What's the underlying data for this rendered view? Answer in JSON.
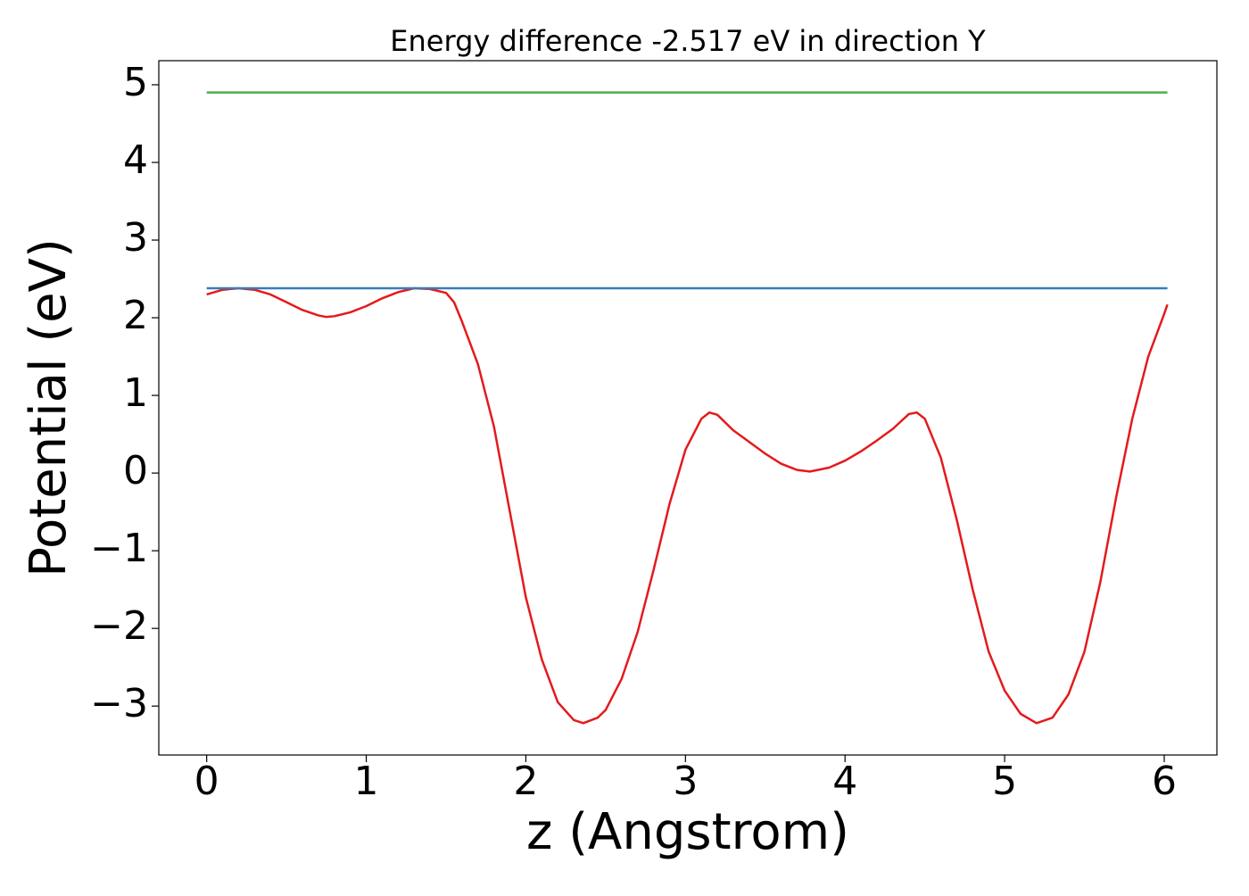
{
  "chart_data": {
    "type": "line",
    "title": "Energy difference -2.517 eV in direction Y",
    "xlabel": "z (Angstrom)",
    "ylabel": "Potential (eV)",
    "xlim": [
      -0.3,
      6.33
    ],
    "ylim": [
      -3.63,
      5.31
    ],
    "xticks": [
      0,
      1,
      2,
      3,
      4,
      5,
      6
    ],
    "yticks": [
      {
        "value": -3,
        "label": "−3"
      },
      {
        "value": -2,
        "label": "−2"
      },
      {
        "value": -1,
        "label": "−1"
      },
      0,
      1,
      2,
      3,
      4,
      5
    ],
    "grid": false,
    "series": [
      {
        "color": "#e41a1c",
        "x": [
          0,
          0.1,
          0.2,
          0.3,
          0.4,
          0.5,
          0.6,
          0.7,
          0.75,
          0.8,
          0.9,
          1.0,
          1.1,
          1.2,
          1.3,
          1.4,
          1.5,
          1.55,
          1.6,
          1.7,
          1.8,
          1.9,
          2.0,
          2.1,
          2.2,
          2.3,
          2.36,
          2.45,
          2.5,
          2.6,
          2.7,
          2.8,
          2.9,
          3.0,
          3.1,
          3.15,
          3.2,
          3.3,
          3.4,
          3.5,
          3.6,
          3.7,
          3.78,
          3.9,
          4.0,
          4.1,
          4.2,
          4.3,
          4.4,
          4.45,
          4.5,
          4.6,
          4.7,
          4.8,
          4.9,
          5.0,
          5.1,
          5.2,
          5.3,
          5.4,
          5.5,
          5.6,
          5.7,
          5.8,
          5.9,
          6.0,
          6.02
        ],
        "values": [
          2.3,
          2.36,
          2.38,
          2.36,
          2.3,
          2.2,
          2.1,
          2.03,
          2.01,
          2.02,
          2.07,
          2.15,
          2.25,
          2.33,
          2.38,
          2.37,
          2.32,
          2.2,
          1.95,
          1.4,
          0.6,
          -0.5,
          -1.6,
          -2.4,
          -2.95,
          -3.18,
          -3.22,
          -3.15,
          -3.05,
          -2.65,
          -2.05,
          -1.25,
          -0.4,
          0.3,
          0.7,
          0.78,
          0.75,
          0.55,
          0.4,
          0.25,
          0.12,
          0.04,
          0.02,
          0.07,
          0.16,
          0.28,
          0.42,
          0.57,
          0.76,
          0.78,
          0.7,
          0.2,
          -0.6,
          -1.5,
          -2.3,
          -2.8,
          -3.1,
          -3.22,
          -3.15,
          -2.85,
          -2.3,
          -1.4,
          -0.3,
          0.7,
          1.5,
          2.05,
          2.17
        ]
      },
      {
        "color": "#377eb8",
        "x": [
          0,
          6.02
        ],
        "values": [
          2.38,
          2.38
        ]
      },
      {
        "color": "#4daf4a",
        "x": [
          0,
          6.02
        ],
        "values": [
          4.9,
          4.9
        ]
      }
    ]
  }
}
